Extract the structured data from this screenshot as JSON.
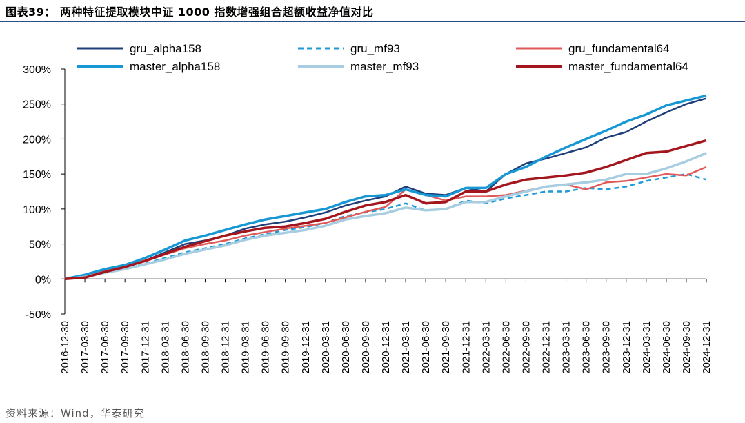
{
  "title": "图表39： 两种特征提取模块中证 1000 指数增强组合超额收益净值对比",
  "source": "资料来源：Wind，华泰研究",
  "chart_data": {
    "type": "line",
    "y_unit": "%",
    "ylim": [
      -50,
      300
    ],
    "yticks": [
      -50,
      0,
      50,
      100,
      150,
      200,
      250,
      300
    ],
    "ytick_labels": [
      "-50%",
      "0%",
      "50%",
      "100%",
      "150%",
      "200%",
      "250%",
      "300%"
    ],
    "x": [
      "2016-12-30",
      "2017-03-30",
      "2017-06-30",
      "2017-09-30",
      "2017-12-31",
      "2018-03-31",
      "2018-06-30",
      "2018-09-30",
      "2018-12-31",
      "2019-03-31",
      "2019-06-30",
      "2019-09-30",
      "2019-12-31",
      "2020-03-31",
      "2020-06-30",
      "2020-09-30",
      "2020-12-31",
      "2021-03-31",
      "2021-06-30",
      "2021-09-30",
      "2021-12-31",
      "2022-03-31",
      "2022-06-30",
      "2022-09-30",
      "2022-12-31",
      "2023-03-31",
      "2023-06-30",
      "2023-09-30",
      "2023-12-31",
      "2024-03-31",
      "2024-06-30",
      "2024-09-30",
      "2024-12-31"
    ],
    "grid": false,
    "legend_position": "top",
    "series": [
      {
        "name": "gru_alpha158",
        "color": "#1f3f7a",
        "dash": false,
        "values": [
          0,
          5,
          12,
          18,
          26,
          38,
          50,
          55,
          62,
          72,
          78,
          82,
          88,
          95,
          105,
          112,
          118,
          132,
          122,
          120,
          130,
          125,
          150,
          165,
          172,
          180,
          188,
          202,
          210,
          225,
          238,
          250,
          258
        ]
      },
      {
        "name": "gru_mf93",
        "color": "#1f9ad6",
        "dash": true,
        "values": [
          0,
          4,
          10,
          15,
          22,
          30,
          38,
          44,
          50,
          58,
          64,
          70,
          74,
          80,
          90,
          95,
          100,
          108,
          98,
          100,
          112,
          108,
          115,
          120,
          125,
          125,
          130,
          128,
          132,
          140,
          145,
          150,
          142
        ]
      },
      {
        "name": "gru_fundamental64",
        "color": "#e05a5a",
        "dash": false,
        "values": [
          0,
          4,
          12,
          18,
          25,
          35,
          44,
          50,
          55,
          62,
          67,
          72,
          76,
          80,
          88,
          96,
          103,
          128,
          120,
          112,
          118,
          118,
          120,
          126,
          132,
          135,
          128,
          138,
          140,
          145,
          150,
          148,
          160
        ]
      },
      {
        "name": "master_alpha158",
        "color": "#1798d4",
        "dash": false,
        "values": [
          0,
          6,
          14,
          20,
          30,
          42,
          55,
          62,
          70,
          78,
          85,
          90,
          95,
          100,
          110,
          118,
          120,
          128,
          120,
          118,
          130,
          130,
          150,
          160,
          175,
          188,
          200,
          212,
          225,
          235,
          248,
          255,
          262
        ]
      },
      {
        "name": "master_mf93",
        "color": "#a7cde0",
        "dash": false,
        "values": [
          0,
          3,
          9,
          14,
          21,
          28,
          36,
          42,
          48,
          56,
          62,
          66,
          70,
          76,
          85,
          90,
          94,
          102,
          98,
          100,
          110,
          110,
          118,
          125,
          132,
          135,
          138,
          142,
          150,
          150,
          158,
          168,
          180
        ]
      },
      {
        "name": "master_fundamental64",
        "color": "#a3161d",
        "dash": false,
        "values": [
          0,
          2,
          10,
          17,
          26,
          36,
          46,
          54,
          62,
          68,
          73,
          75,
          80,
          86,
          96,
          105,
          110,
          120,
          108,
          110,
          125,
          125,
          135,
          142,
          145,
          148,
          152,
          160,
          170,
          180,
          182,
          190,
          198
        ]
      }
    ]
  }
}
